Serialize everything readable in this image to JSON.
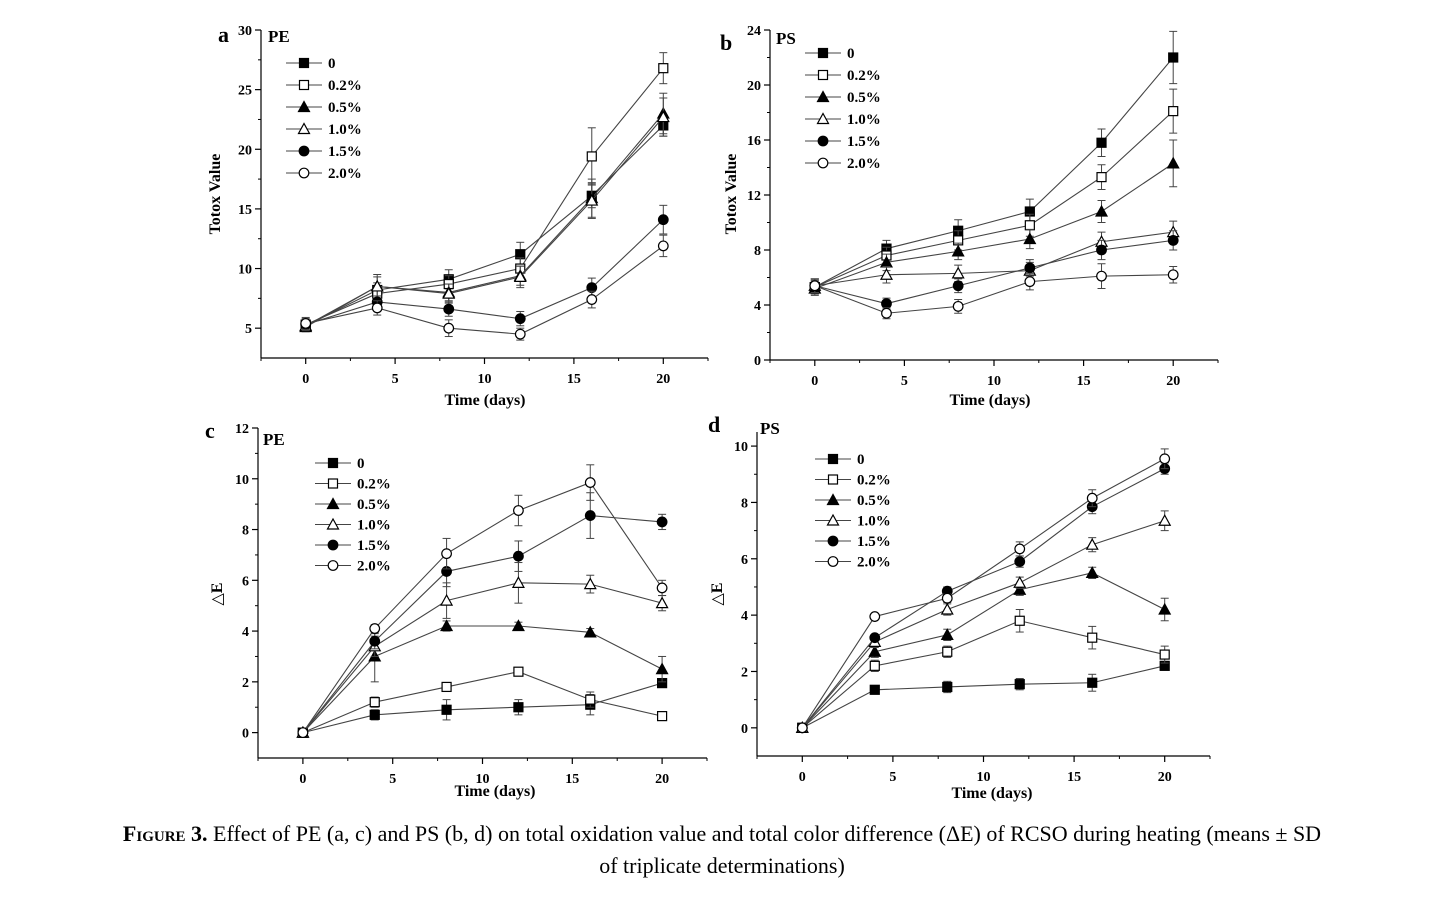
{
  "caption": {
    "head": "Figure 3.",
    "line1": "Effect of PE (a, c) and PS (b, d) on total oxidation value and total color difference (ΔE) of RCSO during heating (means ± SD",
    "line2": "of triplicate determinations)"
  },
  "legend_names": [
    "0",
    "0.2%",
    "0.5%",
    "1.0%",
    "1.5%",
    "2.0%"
  ],
  "chart_data": [
    {
      "type": "line",
      "panel": "a",
      "tag": "PE",
      "xlabel": "Time (days)",
      "ylabel": "Totox Value",
      "xlim": [
        -2.5,
        22.5
      ],
      "ylim": [
        2.5,
        30
      ],
      "xticks": [
        0,
        5,
        10,
        15,
        20
      ],
      "yticks": [
        5,
        10,
        15,
        20,
        25,
        30
      ],
      "legend_position": "top-left",
      "x": [
        0,
        4,
        8,
        12,
        16,
        20
      ],
      "series": [
        {
          "name": "0",
          "marker": "square-filled",
          "values": [
            5.2,
            8.2,
            9.1,
            11.2,
            16.1,
            22.0
          ],
          "err": [
            0.4,
            0.6,
            0.8,
            1.0,
            1.0,
            0.9
          ]
        },
        {
          "name": "0.2%",
          "marker": "square-open",
          "values": [
            5.3,
            7.9,
            8.7,
            10.0,
            19.4,
            26.8
          ],
          "err": [
            0.4,
            0.6,
            0.7,
            0.9,
            2.4,
            1.3
          ]
        },
        {
          "name": "0.5%",
          "marker": "triangle-filled",
          "values": [
            5.1,
            8.5,
            8.0,
            9.4,
            15.9,
            23.0
          ],
          "err": [
            0.4,
            0.8,
            0.7,
            0.8,
            1.6,
            1.7
          ]
        },
        {
          "name": "1.0%",
          "marker": "triangle-open",
          "values": [
            5.2,
            8.5,
            7.9,
            9.3,
            15.7,
            22.7
          ],
          "err": [
            0.4,
            1.0,
            0.8,
            0.9,
            1.5,
            1.6
          ]
        },
        {
          "name": "1.5%",
          "marker": "circle-filled",
          "values": [
            5.3,
            7.2,
            6.6,
            5.8,
            8.4,
            14.1
          ],
          "err": [
            0.5,
            0.5,
            0.6,
            0.6,
            0.8,
            1.2
          ]
        },
        {
          "name": "2.0%",
          "marker": "circle-open",
          "values": [
            5.4,
            6.7,
            5.0,
            4.5,
            7.4,
            11.9
          ],
          "err": [
            0.5,
            0.6,
            0.7,
            0.5,
            0.7,
            0.9
          ]
        }
      ]
    },
    {
      "type": "line",
      "panel": "b",
      "tag": "PS",
      "xlabel": "Time (days)",
      "ylabel": "Totox Value",
      "xlim": [
        -2.5,
        22.5
      ],
      "ylim": [
        0,
        24
      ],
      "xticks": [
        0,
        5,
        10,
        15,
        20
      ],
      "yticks": [
        0,
        4,
        8,
        12,
        16,
        20,
        24
      ],
      "legend_position": "top-left",
      "x": [
        0,
        4,
        8,
        12,
        16,
        20
      ],
      "series": [
        {
          "name": "0",
          "marker": "square-filled",
          "values": [
            5.3,
            8.1,
            9.4,
            10.8,
            15.8,
            22.0
          ],
          "err": [
            0.5,
            0.6,
            0.8,
            0.9,
            1.0,
            1.9
          ]
        },
        {
          "name": "0.2%",
          "marker": "square-open",
          "values": [
            5.3,
            7.6,
            8.7,
            9.8,
            13.3,
            18.1
          ],
          "err": [
            0.5,
            0.6,
            0.7,
            0.8,
            0.9,
            1.6
          ]
        },
        {
          "name": "0.5%",
          "marker": "triangle-filled",
          "values": [
            5.2,
            7.1,
            7.9,
            8.8,
            10.8,
            14.3
          ],
          "err": [
            0.5,
            0.6,
            0.6,
            0.7,
            0.8,
            1.7
          ]
        },
        {
          "name": "1.0%",
          "marker": "triangle-open",
          "values": [
            5.4,
            6.2,
            6.3,
            6.5,
            8.6,
            9.3
          ],
          "err": [
            0.5,
            0.6,
            0.6,
            0.6,
            0.7,
            0.8
          ]
        },
        {
          "name": "1.5%",
          "marker": "circle-filled",
          "values": [
            5.4,
            4.1,
            5.4,
            6.7,
            8.0,
            8.7
          ],
          "err": [
            0.5,
            0.4,
            0.5,
            0.6,
            0.7,
            0.7
          ]
        },
        {
          "name": "2.0%",
          "marker": "circle-open",
          "values": [
            5.4,
            3.4,
            3.9,
            5.7,
            6.1,
            6.2
          ],
          "err": [
            0.5,
            0.4,
            0.5,
            0.6,
            0.9,
            0.6
          ]
        }
      ]
    },
    {
      "type": "line",
      "panel": "c",
      "tag": "PE",
      "xlabel": "Time (days)",
      "ylabel": "△E",
      "xlim": [
        -2.5,
        22.5
      ],
      "ylim": [
        -1,
        12
      ],
      "xticks": [
        0,
        5,
        10,
        15,
        20
      ],
      "yticks": [
        0,
        2,
        4,
        6,
        8,
        10,
        12
      ],
      "legend_position": "top-left",
      "x": [
        0,
        4,
        8,
        12,
        16,
        20
      ],
      "series": [
        {
          "name": "0",
          "marker": "square-filled",
          "values": [
            0,
            0.7,
            0.9,
            1.0,
            1.1,
            1.95
          ],
          "err": [
            0.05,
            0.2,
            0.4,
            0.3,
            0.4,
            0.1
          ]
        },
        {
          "name": "0.2%",
          "marker": "square-open",
          "values": [
            0,
            1.2,
            1.8,
            2.4,
            1.3,
            0.65
          ],
          "err": [
            0.05,
            0.2,
            0.15,
            0.1,
            0.3,
            0.1
          ]
        },
        {
          "name": "0.5%",
          "marker": "triangle-filled",
          "values": [
            0,
            3.0,
            4.2,
            4.2,
            3.95,
            2.5
          ],
          "err": [
            0.05,
            1.0,
            0.2,
            0.15,
            0.15,
            0.5
          ]
        },
        {
          "name": "1.0%",
          "marker": "triangle-open",
          "values": [
            0,
            3.4,
            5.2,
            5.9,
            5.85,
            5.1
          ],
          "err": [
            0.05,
            0.4,
            0.7,
            0.8,
            0.35,
            0.3
          ]
        },
        {
          "name": "1.5%",
          "marker": "circle-filled",
          "values": [
            0,
            3.6,
            6.35,
            6.95,
            8.55,
            8.3
          ],
          "err": [
            0.05,
            0.3,
            0.6,
            0.6,
            0.9,
            0.3
          ]
        },
        {
          "name": "2.0%",
          "marker": "circle-open",
          "values": [
            0,
            4.1,
            7.05,
            8.75,
            9.85,
            5.7
          ],
          "err": [
            0.05,
            0.15,
            0.6,
            0.6,
            0.7,
            0.3
          ]
        }
      ]
    },
    {
      "type": "line",
      "panel": "d",
      "tag": "PS",
      "xlabel": "Time (days)",
      "ylabel": "△E",
      "xlim": [
        -2.5,
        22.5
      ],
      "ylim": [
        -1,
        10.5
      ],
      "xticks": [
        0,
        5,
        10,
        15,
        20
      ],
      "yticks": [
        0,
        2,
        4,
        6,
        8,
        10
      ],
      "legend_position": "top-left",
      "x": [
        0,
        4,
        8,
        12,
        16,
        20
      ],
      "series": [
        {
          "name": "0",
          "marker": "square-filled",
          "values": [
            0,
            1.35,
            1.45,
            1.55,
            1.6,
            2.2
          ],
          "err": [
            0.05,
            0.1,
            0.2,
            0.2,
            0.3,
            0.1
          ]
        },
        {
          "name": "0.2%",
          "marker": "square-open",
          "values": [
            0,
            2.2,
            2.7,
            3.8,
            3.2,
            2.6
          ],
          "err": [
            0.05,
            0.2,
            0.2,
            0.4,
            0.4,
            0.3
          ]
        },
        {
          "name": "0.5%",
          "marker": "triangle-filled",
          "values": [
            0,
            2.7,
            3.3,
            4.9,
            5.5,
            4.2
          ],
          "err": [
            0.05,
            0.2,
            0.2,
            0.2,
            0.2,
            0.4
          ]
        },
        {
          "name": "1.0%",
          "marker": "triangle-open",
          "values": [
            0,
            3.05,
            4.2,
            5.15,
            6.5,
            7.35
          ],
          "err": [
            0.05,
            0.2,
            0.2,
            0.2,
            0.25,
            0.35
          ]
        },
        {
          "name": "1.5%",
          "marker": "circle-filled",
          "values": [
            0,
            3.2,
            4.85,
            5.9,
            7.85,
            9.2
          ],
          "err": [
            0.05,
            0.1,
            0.15,
            0.2,
            0.25,
            0.2
          ]
        },
        {
          "name": "2.0%",
          "marker": "circle-open",
          "values": [
            0,
            3.95,
            4.6,
            6.35,
            8.15,
            9.55
          ],
          "err": [
            0.05,
            0.1,
            0.15,
            0.25,
            0.3,
            0.35
          ]
        }
      ]
    }
  ]
}
